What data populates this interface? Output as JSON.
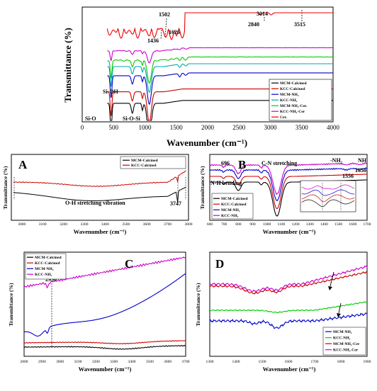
{
  "chart_data": [
    {
      "id": "main",
      "type": "line",
      "xlabel": "Wavenumber (cm⁻¹)",
      "ylabel": "Transmittance (%)",
      "xlim": [
        0,
        4000
      ],
      "xticks": [
        "0",
        "500",
        "1000",
        "1500",
        "2000",
        "2500",
        "3000",
        "3500",
        "4000"
      ],
      "annotations": [
        "1502",
        "1436",
        "1626",
        "3014",
        "2840",
        "3515",
        "Si-OH",
        "Si-O",
        "Si-O-Si"
      ],
      "legend_position": "bottom-right",
      "series": [
        {
          "name": "MCM-Calcined",
          "color": "#000000",
          "offset": 0.1,
          "has_nh": false,
          "cer": false
        },
        {
          "name": "KCC-Calcined",
          "color": "#cc0000",
          "offset": 0.2,
          "has_nh": false,
          "cer": false
        },
        {
          "name": "MCM-NH₂",
          "color": "#0000cc",
          "offset": 0.34,
          "has_nh": true,
          "cer": false
        },
        {
          "name": "KCC-NH₂",
          "color": "#00a8a8",
          "offset": 0.42,
          "has_nh": true,
          "cer": false
        },
        {
          "name": "MCM-NH₂-Cer.",
          "color": "#00cc00",
          "offset": 0.48,
          "has_nh": true,
          "cer": true
        },
        {
          "name": "KCC-NH₂-Cer",
          "color": "#cc00cc",
          "offset": 0.56,
          "has_nh": true,
          "cer": true
        },
        {
          "name": "Cer.",
          "color": "#ee0000",
          "offset": 0.85,
          "has_nh": false,
          "cer": false
        }
      ]
    },
    {
      "id": "A",
      "type": "line",
      "panel_label": "A",
      "xlabel": "Wavenumber (cm⁻¹)",
      "ylabel": "Transmittance (%)",
      "xlim": [
        2950,
        3800
      ],
      "xticks": [
        "3000",
        "3100",
        "3200",
        "3300",
        "3400",
        "3500",
        "3600",
        "3700",
        "3800"
      ],
      "annotations": [
        "O-H stretching vibration",
        "3747"
      ],
      "series": [
        {
          "name": "MCM-Calcined",
          "color": "#000000"
        },
        {
          "name": "KCC-Calcined",
          "color": "#cc0000"
        }
      ]
    },
    {
      "id": "B",
      "type": "line",
      "panel_label": "B",
      "xlabel": "Wavenumber (cm⁻¹)",
      "ylabel": "Transmittance (%)",
      "xlim": [
        600,
        1700
      ],
      "xticks": [
        "600",
        "700",
        "800",
        "900",
        "1000",
        "1100",
        "1200",
        "1300",
        "1400",
        "1500",
        "1600",
        "1700"
      ],
      "annotations": [
        "696",
        "C-N stretching",
        "N-H bending",
        "-NH₂",
        "NH",
        "1556",
        "1650"
      ],
      "series": [
        {
          "name": "MCM-Calcined",
          "color": "#000000"
        },
        {
          "name": "KCC-Calcined",
          "color": "#cc0000"
        },
        {
          "name": "MCM-NH₂",
          "color": "#0000cc"
        },
        {
          "name": "KCC-NH₂",
          "color": "#cc00cc"
        }
      ]
    },
    {
      "id": "C",
      "type": "line",
      "panel_label": "C",
      "xlabel": "Wavenumber (cm⁻¹)",
      "ylabel": "Transmittance (%)",
      "xlim": [
        2800,
        3700
      ],
      "xticks": [
        "2800",
        "2900",
        "3000",
        "3100",
        "3200",
        "3300",
        "3400",
        "3500",
        "3600",
        "3700"
      ],
      "annotations": [
        "2930"
      ],
      "series": [
        {
          "name": "MCM-Calcined",
          "color": "#000000"
        },
        {
          "name": "KCC-Calcined",
          "color": "#cc0000"
        },
        {
          "name": "MCM-NH₂",
          "color": "#0000cc"
        },
        {
          "name": "KCC-NH₂",
          "color": "#cc00cc"
        }
      ]
    },
    {
      "id": "D",
      "type": "line",
      "panel_label": "D",
      "xlabel": "Wavenumber (cm⁻¹)",
      "ylabel": "Transmittance (%)",
      "xlim": [
        1300,
        1900
      ],
      "xticks": [
        "1300",
        "1400",
        "1500",
        "1600",
        "1700",
        "1800",
        "1900"
      ],
      "series": [
        {
          "name": "MCM-NH₂",
          "color": "#0000cc"
        },
        {
          "name": "KCC-NH₂",
          "color": "#00cc00"
        },
        {
          "name": "MCM-NH₂-Cer",
          "color": "#cc0000"
        },
        {
          "name": "KCC-NH₂-Cer",
          "color": "#cc00cc"
        }
      ]
    }
  ]
}
